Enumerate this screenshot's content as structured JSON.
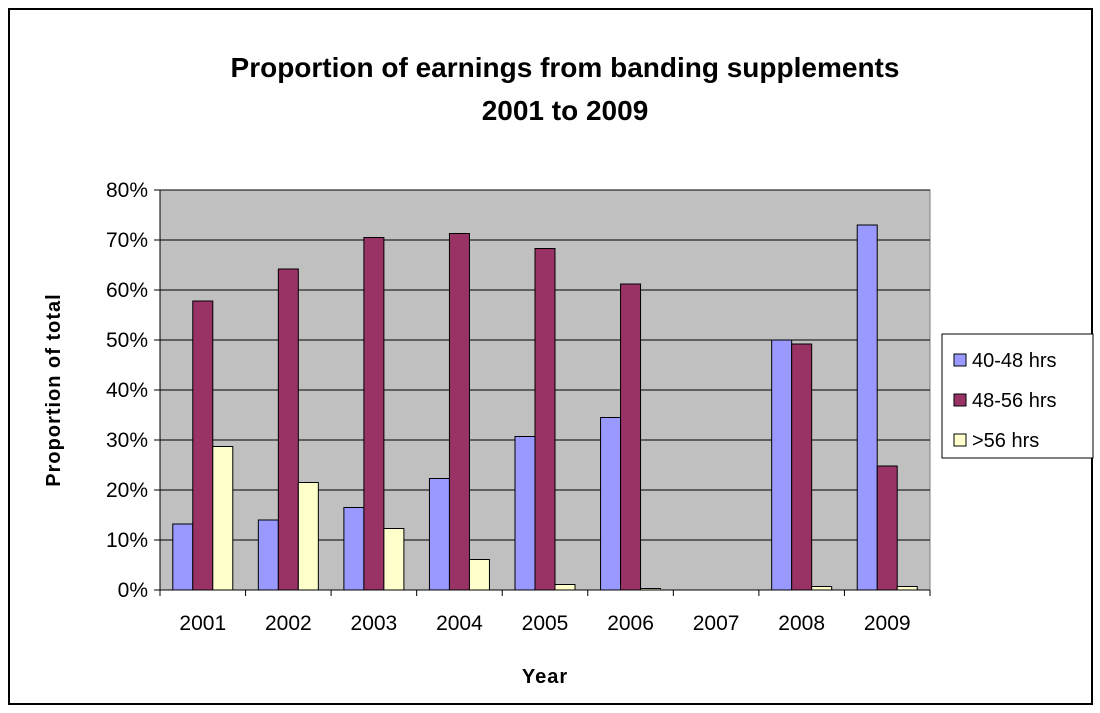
{
  "chart_data": {
    "type": "bar",
    "title": [
      "Proportion of earnings from banding supplements",
      "2001 to 2009"
    ],
    "xlabel": "Year",
    "ylabel": "Proportion of total",
    "categories": [
      "2001",
      "2002",
      "2003",
      "2004",
      "2005",
      "2006",
      "2007",
      "2008",
      "2009"
    ],
    "ylim": [
      0,
      80
    ],
    "yticks": [
      "0%",
      "10%",
      "20%",
      "30%",
      "40%",
      "50%",
      "60%",
      "70%",
      "80%"
    ],
    "y_unit": "%",
    "grid": true,
    "legend_position": "right",
    "plot_background": "#c0c0c0",
    "series": [
      {
        "name": "40-48 hrs",
        "color": "#9999ff",
        "values": [
          13.2,
          14,
          16.5,
          22.3,
          30.7,
          34.5,
          0,
          50,
          73
        ]
      },
      {
        "name": "48-56 hrs",
        "color": "#993366",
        "values": [
          57.8,
          64.2,
          70.5,
          71.3,
          68.3,
          61.2,
          0,
          49.2,
          24.8
        ]
      },
      {
        "name": ">56 hrs",
        "color": "#ffffcc",
        "values": [
          28.7,
          21.5,
          12.3,
          6.1,
          1.1,
          0.3,
          0,
          0.7,
          0.7
        ]
      }
    ]
  }
}
